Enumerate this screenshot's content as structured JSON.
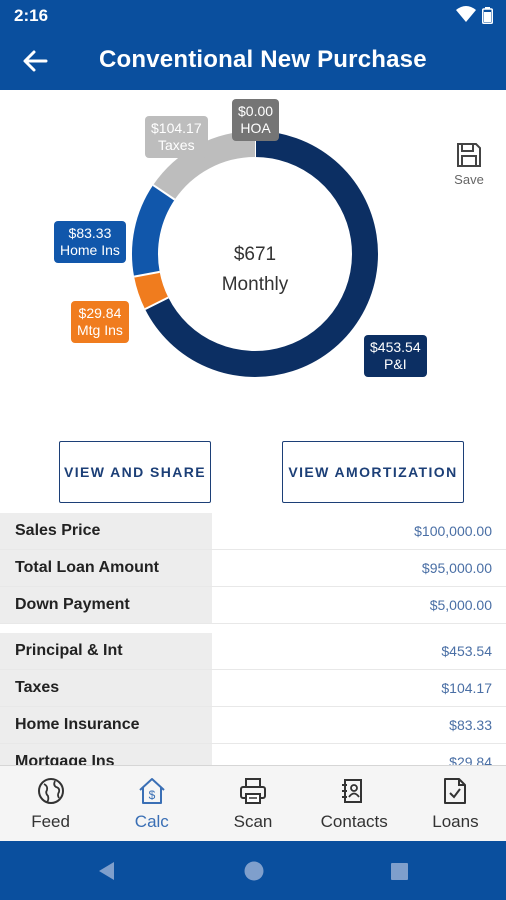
{
  "status": {
    "time": "2:16"
  },
  "header": {
    "title": "Conventional New Purchase"
  },
  "chart_data": {
    "type": "pie",
    "style": "donut",
    "center_amount": "$671",
    "center_label": "Monthly",
    "slices": [
      {
        "name": "P&I",
        "label": "$453.54",
        "value": 453.54,
        "color": "#0c2f63"
      },
      {
        "name": "Mtg Ins",
        "label": "$29.84",
        "value": 29.84,
        "color": "#f07c1e"
      },
      {
        "name": "Home Ins",
        "label": "$83.33",
        "value": 83.33,
        "color": "#1157ab"
      },
      {
        "name": "Taxes",
        "label": "$104.17",
        "value": 104.17,
        "color": "#bdbdbd"
      },
      {
        "name": "HOA",
        "label": "$0.00",
        "value": 0.0,
        "color": "#757575"
      }
    ]
  },
  "save_label": "Save",
  "buttons": {
    "share": "VIEW AND SHARE",
    "amortization": "VIEW AMORTIZATION"
  },
  "loan_table": [
    {
      "label": "Sales Price",
      "value": "$100,000.00"
    },
    {
      "label": "Total Loan Amount",
      "value": "$95,000.00"
    },
    {
      "label": "Down Payment",
      "value": "$5,000.00"
    }
  ],
  "payment_table": [
    {
      "label": "Principal & Int",
      "value": "$453.54"
    },
    {
      "label": "Taxes",
      "value": "$104.17"
    },
    {
      "label": "Home Insurance",
      "value": "$83.33"
    },
    {
      "label": "Mortgage Ins",
      "value": "$29.84"
    }
  ],
  "nav": [
    {
      "label": "Feed",
      "icon": "globe-icon",
      "active": false
    },
    {
      "label": "Calc",
      "icon": "house-dollar-icon",
      "active": true
    },
    {
      "label": "Scan",
      "icon": "printer-icon",
      "active": false
    },
    {
      "label": "Contacts",
      "icon": "contacts-icon",
      "active": false
    },
    {
      "label": "Loans",
      "icon": "document-check-icon",
      "active": false
    }
  ],
  "colors": {
    "primary": "#0a4f9e",
    "accent": "#3a6fb5",
    "button_border": "#1c3f77"
  }
}
